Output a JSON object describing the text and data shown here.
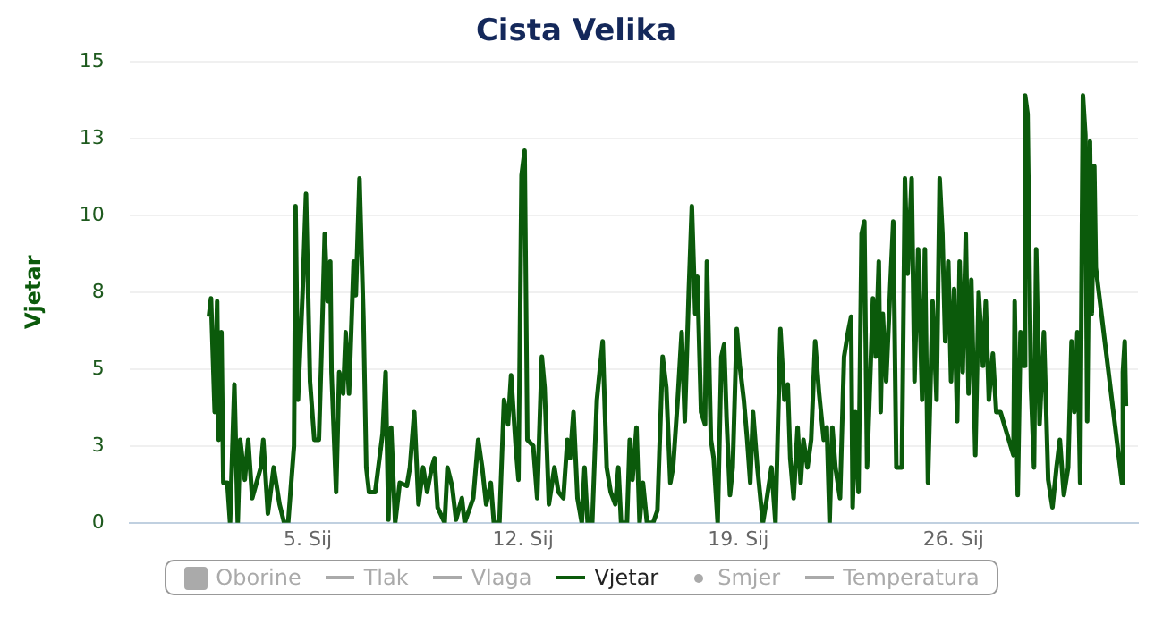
{
  "chart_data": {
    "type": "line",
    "title": "Cista Velika",
    "ylabel": "Vjetar",
    "xlim": [
      -0.8,
      32
    ],
    "ylim": [
      0,
      15
    ],
    "xticks": [
      {
        "value": 5,
        "label": "5. Sij"
      },
      {
        "value": 12,
        "label": "12. Sij"
      },
      {
        "value": 19,
        "label": "19. Sij"
      },
      {
        "value": 26,
        "label": "26. Sij"
      }
    ],
    "yticks": [
      0,
      {
        "value": 2.5,
        "label": "3"
      },
      5,
      {
        "value": 7.5,
        "label": "8"
      },
      10,
      {
        "value": 12.5,
        "label": "13"
      },
      15
    ],
    "grid": "y",
    "legend": "bottom",
    "marker": "none",
    "line_style": "solid",
    "series": [
      {
        "name": "Oborine",
        "type": "bar",
        "color": "#aaaaaa"
      },
      {
        "name": "Tlak",
        "type": "line",
        "color": "#aaaaaa"
      },
      {
        "name": "Vlaga",
        "type": "line",
        "color": "#aaaaaa"
      },
      {
        "name": "Vjetar",
        "color": "#0b5a0b",
        "x": [
          1.78,
          1.85,
          1.97,
          2.05,
          2.1,
          2.19,
          2.25,
          2.38,
          2.47,
          2.61,
          2.72,
          2.8,
          2.95,
          3.06,
          3.19,
          3.47,
          3.55,
          3.7,
          3.89,
          4.08,
          4.23,
          4.36,
          4.55,
          4.6,
          4.68,
          4.83,
          4.94,
          5.07,
          5.21,
          5.36,
          5.44,
          5.55,
          5.64,
          5.73,
          5.77,
          5.92,
          6.02,
          6.15,
          6.23,
          6.34,
          6.49,
          6.56,
          6.68,
          6.81,
          6.9,
          6.99,
          7.19,
          7.43,
          7.53,
          7.62,
          7.71,
          7.84,
          7.99,
          8.22,
          8.32,
          8.46,
          8.6,
          8.75,
          8.88,
          9.03,
          9.12,
          9.22,
          9.45,
          9.54,
          9.69,
          9.82,
          10.01,
          10.1,
          10.38,
          10.54,
          10.67,
          10.8,
          10.95,
          11.05,
          11.23,
          11.38,
          11.51,
          11.61,
          11.76,
          11.85,
          11.95,
          12.05,
          12.14,
          12.33,
          12.46,
          12.61,
          12.7,
          12.84,
          13.02,
          13.15,
          13.31,
          13.44,
          13.53,
          13.64,
          13.77,
          13.91,
          14.0,
          14.1,
          14.25,
          14.4,
          14.59,
          14.72,
          14.85,
          15.0,
          15.1,
          15.19,
          15.38,
          15.47,
          15.56,
          15.69,
          15.79,
          15.9,
          16.03,
          16.23,
          16.37,
          16.54,
          16.66,
          16.79,
          16.88,
          17.03,
          17.16,
          17.26,
          17.39,
          17.49,
          17.6,
          17.67,
          17.79,
          17.92,
          17.98,
          18.11,
          18.2,
          18.33,
          18.45,
          18.54,
          18.62,
          18.73,
          18.82,
          18.95,
          19.05,
          19.18,
          19.29,
          19.39,
          19.48,
          19.62,
          19.8,
          19.93,
          20.08,
          20.21,
          20.37,
          20.5,
          20.61,
          20.69,
          20.8,
          20.93,
          21.03,
          21.12,
          21.25,
          21.37,
          21.5,
          21.63,
          21.78,
          21.88,
          21.97,
          22.06,
          22.16,
          22.31,
          22.44,
          22.57,
          22.67,
          22.72,
          22.81,
          22.91,
          23.01,
          23.1,
          23.19,
          23.38,
          23.47,
          23.57,
          23.63,
          23.7,
          23.81,
          23.94,
          24.04,
          24.14,
          24.32,
          24.42,
          24.51,
          24.64,
          24.73,
          24.85,
          24.98,
          25.07,
          25.17,
          25.32,
          25.45,
          25.55,
          25.64,
          25.73,
          25.83,
          25.92,
          26.02,
          26.12,
          26.2,
          26.3,
          26.4,
          26.49,
          26.58,
          26.71,
          26.82,
          26.96,
          27.05,
          27.15,
          27.28,
          27.39,
          27.53,
          27.95,
          27.99,
          28.09,
          28.18,
          28.28,
          28.33,
          28.41,
          28.52,
          28.62,
          28.69,
          28.8,
          28.94,
          29.08,
          29.22,
          29.35,
          29.46,
          29.59,
          29.73,
          29.84,
          29.93,
          30.03,
          30.12,
          30.21,
          30.29,
          30.35,
          30.44,
          30.5,
          30.58,
          30.63,
          31.48,
          31.51,
          31.57,
          31.61
        ],
        "values": [
          6.7,
          7.3,
          3.6,
          7.2,
          2.7,
          6.2,
          1.3,
          1.3,
          0,
          4.5,
          0,
          2.7,
          1.4,
          2.7,
          0.8,
          1.8,
          2.7,
          0.3,
          1.8,
          0.6,
          0,
          0,
          2.5,
          10.3,
          4,
          7.5,
          10.7,
          4.6,
          2.7,
          2.7,
          5.4,
          9.4,
          7.2,
          8.5,
          4.9,
          1,
          4.9,
          4.2,
          6.2,
          4.2,
          8.5,
          7.4,
          11.2,
          6.6,
          1.8,
          1,
          1,
          2.9,
          4.9,
          0.1,
          3.1,
          0,
          1.3,
          1.2,
          1.8,
          3.6,
          0.6,
          1.8,
          1,
          1.8,
          2.1,
          0.5,
          0,
          1.8,
          1.2,
          0.1,
          0.8,
          0,
          0.8,
          2.7,
          1.8,
          0.6,
          1.3,
          0,
          0,
          4,
          3.2,
          4.8,
          2.5,
          1.4,
          11.3,
          12.1,
          2.7,
          2.5,
          0.8,
          5.4,
          4.4,
          0.6,
          1.8,
          1,
          0.8,
          2.7,
          2.1,
          3.6,
          0.8,
          0,
          1.8,
          0,
          0,
          4,
          5.9,
          1.8,
          1,
          0.6,
          1.8,
          0,
          0,
          2.7,
          1.4,
          3.1,
          0,
          1.3,
          0,
          0,
          0.4,
          5.4,
          4.4,
          1.3,
          1.8,
          4,
          6.2,
          3.3,
          7.5,
          10.3,
          6.8,
          8,
          3.6,
          3.2,
          8.5,
          2.7,
          2.1,
          0,
          5.4,
          5.8,
          3.4,
          0.9,
          1.8,
          6.3,
          5.1,
          4,
          2.7,
          1.3,
          3.6,
          1.8,
          0,
          0.8,
          1.8,
          0,
          6.3,
          4,
          4.5,
          2.1,
          0.8,
          3.1,
          1.3,
          2.7,
          1.8,
          2.7,
          5.9,
          4.2,
          2.7,
          3.1,
          0,
          3.1,
          1.8,
          0.8,
          5.4,
          6.2,
          6.7,
          0.5,
          3.6,
          1,
          9.4,
          9.8,
          1.8,
          7.3,
          5.4,
          8.5,
          3.6,
          6.8,
          4.6,
          7.6,
          9.8,
          1.8,
          1.8,
          11.2,
          8.1,
          11.2,
          4.6,
          8.9,
          4,
          8.9,
          1.3,
          7.2,
          4,
          11.2,
          9.4,
          5.9,
          8.5,
          4.6,
          7.6,
          3.3,
          8.5,
          4.9,
          9.4,
          4.2,
          7.9,
          2.2,
          7.5,
          5.1,
          7.2,
          4,
          5.5,
          3.6,
          3.6,
          2.2,
          7.2,
          0.9,
          6.2,
          5.1,
          13.9,
          13.3,
          4.4,
          1.8,
          8.9,
          3.2,
          6.2,
          1.4,
          0.5,
          1.8,
          2.7,
          0.9,
          1.8,
          5.9,
          3.6,
          6.2,
          1.3,
          13.9,
          12.6,
          3.3,
          12.4,
          6.8,
          11.6,
          8.3,
          1.3,
          4.9,
          5.9,
          3.8
        ]
      },
      {
        "name": "Smjer",
        "type": "scatter",
        "color": "#aaaaaa"
      },
      {
        "name": "Temperatura",
        "type": "line",
        "color": "#aaaaaa"
      }
    ]
  }
}
